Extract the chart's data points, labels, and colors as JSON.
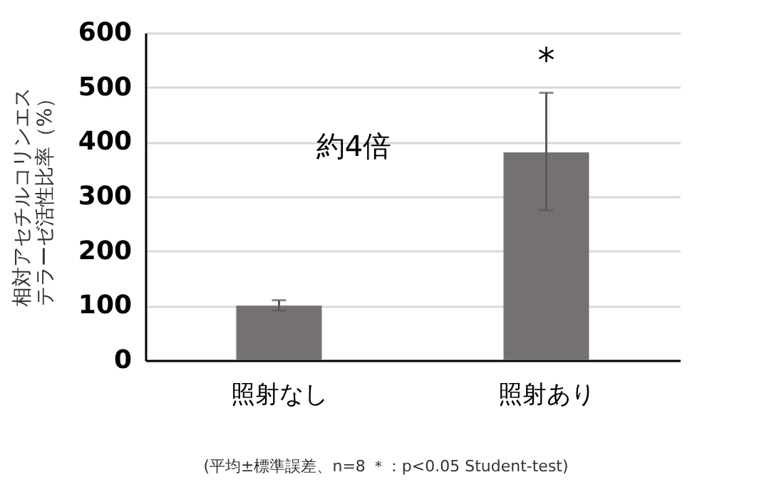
{
  "chart_data": {
    "type": "bar",
    "ylabel": "相対アセチルコリンエステラーゼ活性比率（%）",
    "categories": [
      "照射なし",
      "照射あり"
    ],
    "series": [
      {
        "color": "#767171",
        "values": [
          100,
          381
        ],
        "errors": [
          [
            91,
            110
          ],
          [
            275,
            490
          ]
        ]
      }
    ],
    "ylim": [
      0,
      600
    ],
    "yticks": [
      0,
      100,
      200,
      300,
      400,
      500,
      600
    ],
    "grid": "y",
    "annotations": [
      "*",
      "約4倍",
      "(平均±標準誤差、n=8 ＊：p<0.05 Student-test)"
    ]
  }
}
